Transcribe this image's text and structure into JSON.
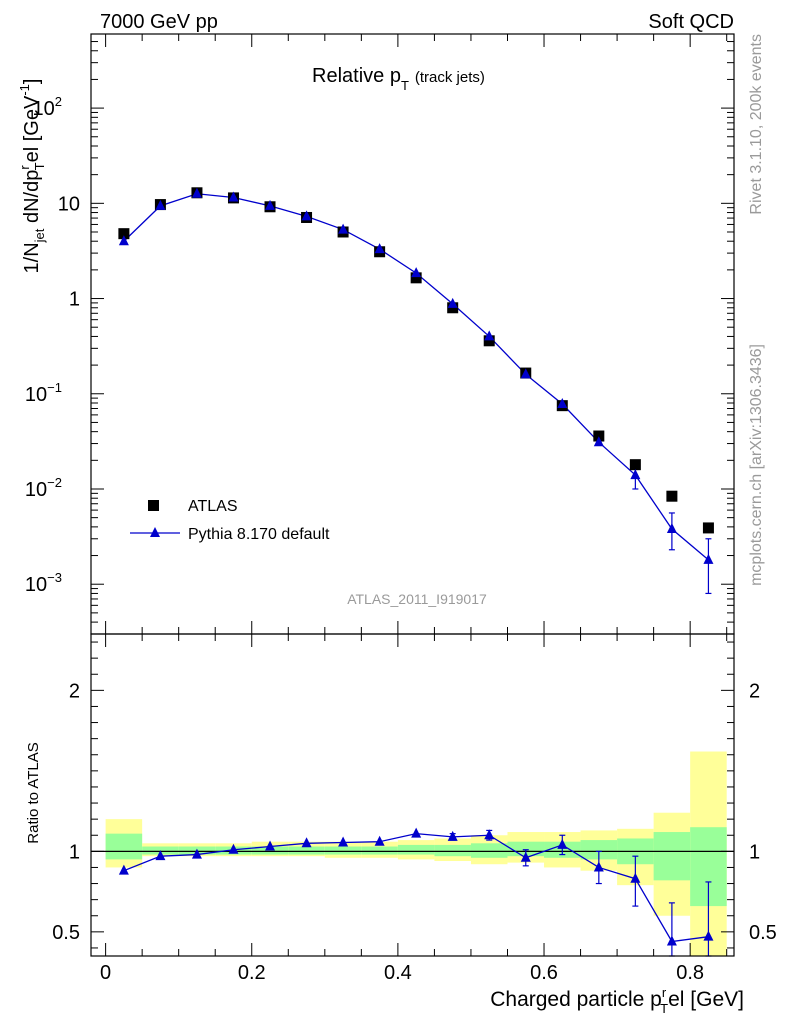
{
  "header": {
    "left": "7000 GeV pp",
    "right": "Soft QCD"
  },
  "side": {
    "rivet": "Rivet 3.1.10,  200k events",
    "mcplots": "mcplots.cern.ch [arXiv:1306.3436]"
  },
  "chart_data": [
    {
      "type": "scatter",
      "title": "Relative p_T (track jets)",
      "title_main": "Relative p",
      "title_sub": "T",
      "title_tail": "(track jets)",
      "analysis": "ATLAS_2011_I919017",
      "ylabel": "1/N_jet dN/dp_T^rel [GeV^-1]",
      "yscale": "log",
      "ylim": [
        0.0003,
        600
      ],
      "xlim": [
        -0.02,
        0.86
      ],
      "y_ticks": [
        {
          "v": 0.001,
          "base": "10",
          "exp": "−3"
        },
        {
          "v": 0.01,
          "base": "10",
          "exp": "−2"
        },
        {
          "v": 0.1,
          "base": "10",
          "exp": "−1"
        },
        {
          "v": 1,
          "base": "1",
          "exp": ""
        },
        {
          "v": 10,
          "base": "10",
          "exp": ""
        },
        {
          "v": 100,
          "base": "10",
          "exp": "2"
        }
      ],
      "legend": [
        {
          "name": "ATLAS",
          "marker": "square",
          "color": "#000000"
        },
        {
          "name": "Pythia 8.170 default",
          "marker": "triangle",
          "color": "#0000cc"
        }
      ],
      "x": [
        0.025,
        0.075,
        0.125,
        0.175,
        0.225,
        0.275,
        0.325,
        0.375,
        0.425,
        0.475,
        0.525,
        0.575,
        0.625,
        0.675,
        0.725,
        0.775,
        0.825
      ],
      "series": [
        {
          "name": "ATLAS",
          "values": [
            4.8,
            9.7,
            12.9,
            11.4,
            9.2,
            7.1,
            5.0,
            3.1,
            1.65,
            0.8,
            0.36,
            0.165,
            0.075,
            0.036,
            0.018,
            0.0084,
            0.0039
          ]
        },
        {
          "name": "Pythia 8.170 default",
          "values": [
            4.0,
            9.4,
            12.6,
            11.5,
            9.4,
            7.3,
            5.3,
            3.3,
            1.85,
            0.88,
            0.4,
            0.16,
            0.078,
            0.031,
            0.014,
            0.0038,
            0.0018
          ],
          "err_low": [
            0,
            0,
            0,
            0,
            0,
            0,
            0,
            0,
            0,
            0,
            0,
            0,
            0,
            0,
            0.004,
            0.0015,
            0.001
          ],
          "err_high": [
            0,
            0,
            0,
            0,
            0,
            0,
            0,
            0,
            0,
            0,
            0,
            0,
            0,
            0,
            0.004,
            0.0018,
            0.0012
          ]
        }
      ]
    },
    {
      "type": "scatter",
      "ylabel": "Ratio to ATLAS",
      "xlabel": "Charged particle p_T^rel [GeV]",
      "xlabel_main": "Charged particle p",
      "xlabel_sub": "T",
      "xlabel_sup": "r",
      "xlabel_tail": "el [GeV]",
      "ylim": [
        0.35,
        2.35
      ],
      "xlim": [
        -0.02,
        0.86
      ],
      "x_ticks": [
        "0",
        "0.2",
        "0.4",
        "0.6",
        "0.8"
      ],
      "y_ticks": [
        "0.5",
        "1",
        "2"
      ],
      "bands": {
        "edges": [
          0.0,
          0.05,
          0.1,
          0.15,
          0.2,
          0.25,
          0.3,
          0.35,
          0.4,
          0.45,
          0.5,
          0.55,
          0.6,
          0.65,
          0.7,
          0.75,
          0.8,
          0.85
        ],
        "stat_low": [
          0.95,
          0.98,
          0.98,
          0.98,
          0.98,
          0.98,
          0.98,
          0.98,
          0.98,
          0.97,
          0.96,
          0.97,
          0.96,
          0.95,
          0.92,
          0.82,
          0.66
        ],
        "stat_high": [
          1.11,
          1.03,
          1.03,
          1.03,
          1.03,
          1.03,
          1.03,
          1.03,
          1.04,
          1.04,
          1.05,
          1.06,
          1.06,
          1.07,
          1.08,
          1.12,
          1.15
        ],
        "tot_low": [
          0.9,
          0.97,
          0.97,
          0.97,
          0.97,
          0.97,
          0.96,
          0.96,
          0.95,
          0.94,
          0.92,
          0.93,
          0.9,
          0.88,
          0.79,
          0.6,
          0.34
        ],
        "tot_high": [
          1.2,
          1.05,
          1.05,
          1.05,
          1.06,
          1.06,
          1.06,
          1.06,
          1.07,
          1.08,
          1.1,
          1.12,
          1.12,
          1.13,
          1.14,
          1.24,
          1.62
        ]
      },
      "series": [
        {
          "name": "Pythia 8.170 default",
          "x": [
            0.025,
            0.075,
            0.125,
            0.175,
            0.225,
            0.275,
            0.325,
            0.375,
            0.425,
            0.475,
            0.525,
            0.575,
            0.625,
            0.675,
            0.725,
            0.775,
            0.825
          ],
          "values": [
            0.88,
            0.97,
            0.98,
            1.01,
            1.03,
            1.05,
            1.055,
            1.06,
            1.11,
            1.09,
            1.1,
            0.96,
            1.04,
            0.9,
            0.83,
            0.44,
            0.47
          ],
          "err_low": [
            0,
            0,
            0,
            0,
            0,
            0,
            0,
            0,
            0,
            0.02,
            0.03,
            0.05,
            0.06,
            0.1,
            0.17,
            0.24,
            0.33
          ],
          "err_high": [
            0,
            0,
            0,
            0,
            0,
            0,
            0,
            0,
            0,
            0.02,
            0.03,
            0.05,
            0.06,
            0.1,
            0.14,
            0.24,
            0.34
          ]
        }
      ]
    }
  ]
}
